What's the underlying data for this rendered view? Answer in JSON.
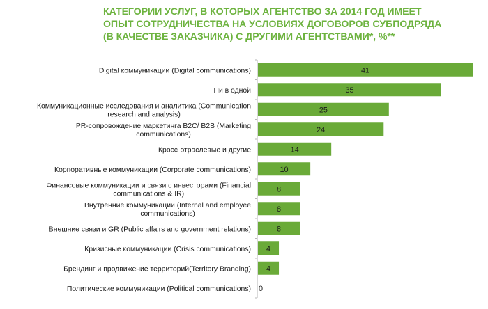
{
  "chart_data": {
    "type": "bar",
    "orientation": "horizontal",
    "title_lines": [
      "КАТЕГОРИИ УСЛУГ, В КОТОРЫХ АГЕНТСТВО ЗА 2014 ГОД ИМЕЕТ",
      "ОПЫТ СОТРУДНИЧЕСТВА НА УСЛОВИЯХ ДОГОВОРОВ СУБПОДРЯДА",
      "(В КАЧЕСТВЕ ЗАКАЗЧИКА) С ДРУГИМИ АГЕНТСТВАМИ*, %**"
    ],
    "categories": [
      [
        "Digital коммуникации (Digital communications)"
      ],
      [
        "Ни в одной"
      ],
      [
        "Коммуникационные исследования и аналитика (Communication",
        "research and analysis)"
      ],
      [
        "PR-сопровождение маркетинга B2C/ B2B (Marketing",
        "communications)"
      ],
      [
        "Кросс-отраслевые и другие"
      ],
      [
        "Корпоративные коммуникации (Corporate communications)"
      ],
      [
        "Финансовые коммуникации и связи с инвесторами (Financial",
        "communications & IR)"
      ],
      [
        "Внутренние коммуникации (Internal and employee",
        "communications)"
      ],
      [
        "Внешние связи и GR (Public affairs and government relations)"
      ],
      [
        "Кризисные коммуникации (Crisis communications)"
      ],
      [
        "Брендинг и продвижение территорий(Territory Branding)"
      ],
      [
        "Политические коммуникации (Political communications)"
      ]
    ],
    "values": [
      41,
      35,
      25,
      24,
      14,
      10,
      8,
      8,
      8,
      4,
      4,
      0
    ],
    "xlim": [
      0,
      41
    ],
    "unit": "%",
    "grid": false,
    "legend": "none",
    "data_labels": true,
    "bar_color": "#6aaa38",
    "title_color": "#6db33f"
  }
}
